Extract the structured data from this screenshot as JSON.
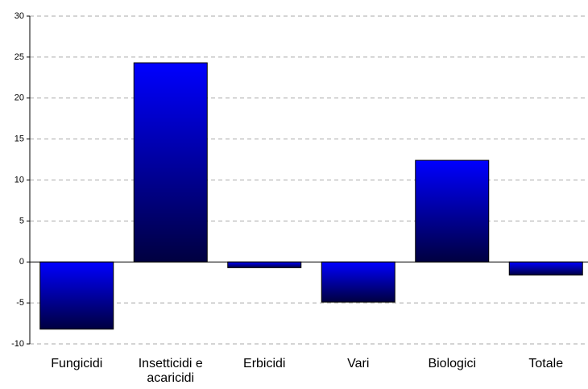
{
  "chart_data": {
    "type": "bar",
    "categories": [
      "Fungicidi",
      "Insetticidi e acaricidi",
      "Erbicidi",
      "Vari",
      "Biologici",
      "Totale"
    ],
    "values": [
      -8.2,
      24.3,
      -0.7,
      -4.9,
      12.4,
      -1.6
    ],
    "color": "#0000ff",
    "ylim": [
      -10,
      30
    ],
    "yticks": [
      -10,
      -5,
      0,
      5,
      10,
      15,
      20,
      25,
      30
    ],
    "grid": true
  }
}
